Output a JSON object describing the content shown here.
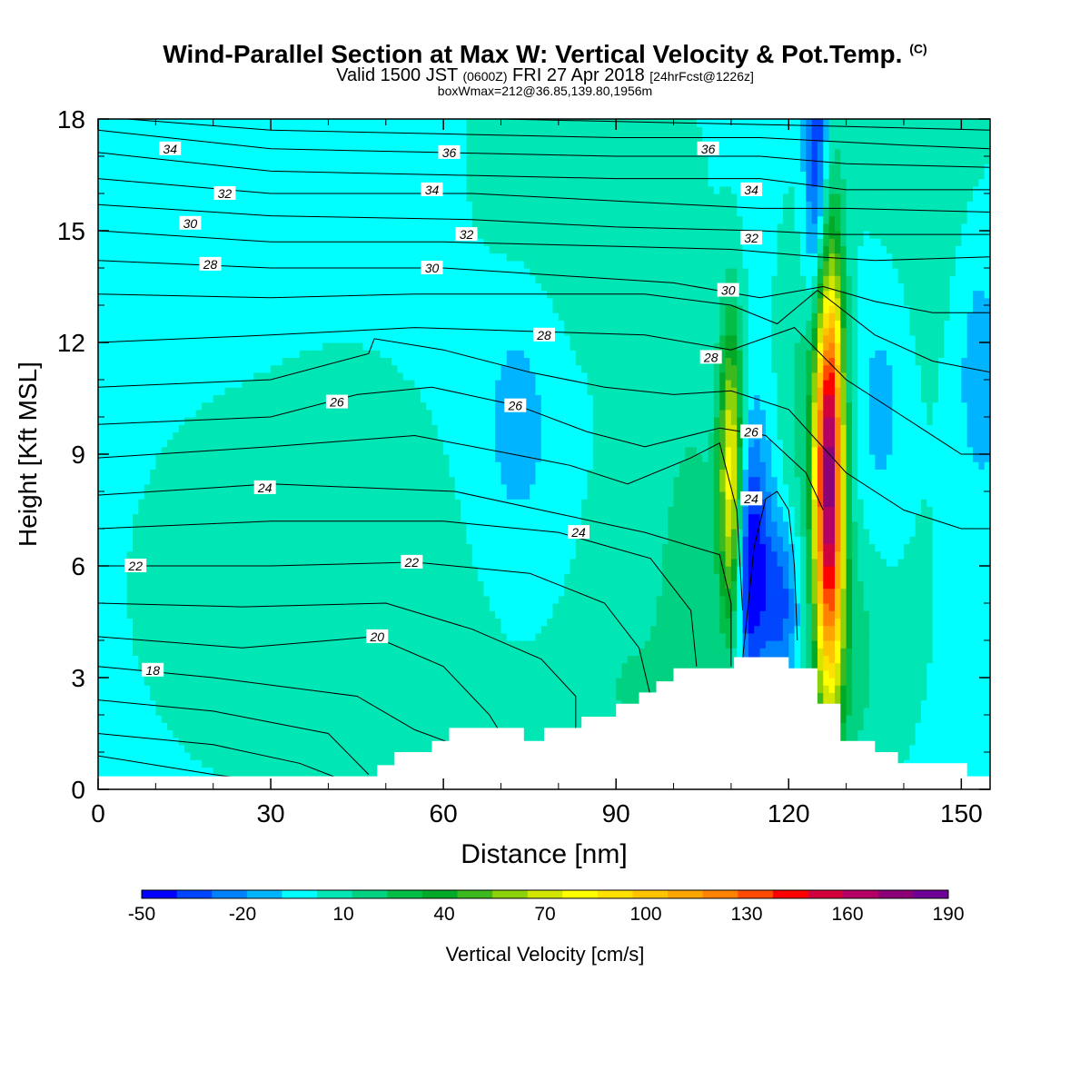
{
  "chart_data": {
    "type": "heatmap",
    "title": "Wind-Parallel Section at Max W: Vertical Velocity & Pot.Temp.",
    "title_mark": "(C)",
    "subtitle_parts": [
      "Valid 1500 JST ",
      "(0600Z)",
      " FRI 27 Apr 2018 ",
      "[24hrFcst@1226z]"
    ],
    "subtitle2": "boxWmax=212@36.85,139.80,1956m",
    "xlabel": "Distance [nm]",
    "ylabel": "Height [Kft MSL]",
    "xlim": [
      0,
      155
    ],
    "ylim": [
      0,
      18
    ],
    "xticks": [
      0,
      30,
      60,
      90,
      120,
      150
    ],
    "yticks": [
      0,
      3,
      6,
      9,
      12,
      15,
      18
    ],
    "colorbar": {
      "label": "Vertical Velocity [cm/s]",
      "range": [
        -50,
        190
      ],
      "tick_labels": [
        "-50",
        "-20",
        "10",
        "40",
        "70",
        "100",
        "130",
        "160",
        "190"
      ],
      "colors": [
        "#0000ff",
        "#0046ff",
        "#0082ff",
        "#00b4ff",
        "#00ffff",
        "#00e6b4",
        "#00d282",
        "#00be46",
        "#00aa28",
        "#3cb91e",
        "#8cd20a",
        "#d2e600",
        "#ffff00",
        "#ffe100",
        "#ffc300",
        "#ffa500",
        "#ff8200",
        "#ff4b00",
        "#ff0000",
        "#d2003c",
        "#b40064",
        "#8c0078",
        "#6e0096"
      ]
    },
    "isentropes": [
      {
        "theta": 16,
        "points": [
          [
            0,
            0.9
          ],
          [
            20,
            0.4
          ],
          [
            40,
            0.0
          ]
        ]
      },
      {
        "theta": 17,
        "points": [
          [
            0,
            1.5
          ],
          [
            20,
            1.2
          ],
          [
            35,
            0.7
          ],
          [
            45,
            0.1
          ]
        ]
      },
      {
        "theta": 18,
        "points": [
          [
            0,
            2.4
          ],
          [
            20,
            2.1
          ],
          [
            40,
            1.5
          ],
          [
            47,
            0.4
          ]
        ]
      },
      {
        "theta": 19,
        "points": [
          [
            0,
            3.3
          ],
          [
            20,
            3.0
          ],
          [
            45,
            2.5
          ],
          [
            55,
            1.6
          ],
          [
            62,
            1.2
          ]
        ]
      },
      {
        "theta": 20,
        "points": [
          [
            0,
            4.1
          ],
          [
            25,
            3.8
          ],
          [
            48,
            4.1
          ],
          [
            60,
            3.3
          ],
          [
            68,
            2.0
          ],
          [
            70,
            1.5
          ]
        ]
      },
      {
        "theta": 21,
        "points": [
          [
            0,
            5.0
          ],
          [
            25,
            4.9
          ],
          [
            50,
            5.0
          ],
          [
            65,
            4.3
          ],
          [
            77,
            3.5
          ],
          [
            83,
            2.5
          ],
          [
            83,
            1.5
          ]
        ]
      },
      {
        "theta": 22,
        "points": [
          [
            0,
            6.0
          ],
          [
            30,
            6.0
          ],
          [
            55,
            6.1
          ],
          [
            75,
            5.8
          ],
          [
            88,
            5.0
          ],
          [
            94,
            3.8
          ],
          [
            96,
            2.5
          ]
        ]
      },
      {
        "theta": 23,
        "points": [
          [
            0,
            7.0
          ],
          [
            30,
            7.2
          ],
          [
            60,
            7.2
          ],
          [
            80,
            6.9
          ],
          [
            96,
            6.2
          ],
          [
            103,
            4.8
          ],
          [
            104,
            3.3
          ]
        ]
      },
      {
        "theta": 24,
        "points": [
          [
            0,
            7.9
          ],
          [
            30,
            8.2
          ],
          [
            62,
            8.0
          ],
          [
            80,
            7.4
          ],
          [
            95,
            6.9
          ],
          [
            108,
            6.3
          ],
          [
            110,
            5.0
          ],
          [
            110,
            3.3
          ]
        ]
      },
      {
        "theta": 24.5,
        "points": [
          [
            112,
            3.5
          ],
          [
            114,
            6.5
          ],
          [
            116,
            7.8
          ],
          [
            118,
            8.0
          ],
          [
            120,
            7.5
          ],
          [
            121,
            6.0
          ],
          [
            121.5,
            4.0
          ]
        ]
      },
      {
        "theta": 25,
        "points": [
          [
            0,
            8.9
          ],
          [
            30,
            9.2
          ],
          [
            55,
            9.5
          ],
          [
            72,
            9.0
          ],
          [
            82,
            8.7
          ],
          [
            92,
            8.2
          ],
          [
            103,
            8.9
          ],
          [
            108,
            9.3
          ],
          [
            111,
            7.5
          ],
          [
            112,
            4.8
          ]
        ]
      },
      {
        "theta": 26,
        "points": [
          [
            0,
            9.8
          ],
          [
            30,
            10.0
          ],
          [
            45,
            10.6
          ],
          [
            58,
            10.8
          ],
          [
            73,
            10.3
          ],
          [
            85,
            9.6
          ],
          [
            95,
            9.2
          ],
          [
            108,
            9.7
          ],
          [
            116,
            9.5
          ],
          [
            123,
            8.5
          ],
          [
            126,
            7.5
          ]
        ]
      },
      {
        "theta": 27,
        "points": [
          [
            0,
            10.8
          ],
          [
            30,
            11.0
          ],
          [
            47,
            11.7
          ],
          [
            48,
            12.1
          ],
          [
            60,
            11.8
          ],
          [
            75,
            11.2
          ],
          [
            88,
            10.8
          ],
          [
            100,
            10.6
          ],
          [
            110,
            10.7
          ],
          [
            120,
            10.2
          ],
          [
            130,
            8.5
          ],
          [
            140,
            7.5
          ],
          [
            150,
            7.0
          ],
          [
            155,
            7.0
          ]
        ]
      },
      {
        "theta": 28,
        "points": [
          [
            0,
            12.0
          ],
          [
            30,
            12.2
          ],
          [
            55,
            12.4
          ],
          [
            75,
            12.3
          ],
          [
            95,
            12.2
          ],
          [
            110,
            11.8
          ],
          [
            121,
            12.4
          ],
          [
            130,
            11.0
          ],
          [
            140,
            10.0
          ],
          [
            150,
            9.0
          ],
          [
            155,
            9.0
          ]
        ]
      },
      {
        "theta": 29,
        "points": [
          [
            0,
            13.3
          ],
          [
            30,
            13.2
          ],
          [
            55,
            13.3
          ],
          [
            75,
            13.3
          ],
          [
            95,
            13.3
          ],
          [
            110,
            13.0
          ],
          [
            118,
            12.5
          ],
          [
            125,
            13.4
          ],
          [
            135,
            12.2
          ],
          [
            145,
            11.5
          ],
          [
            155,
            11.2
          ]
        ]
      },
      {
        "theta": 30,
        "points": [
          [
            0,
            14.2
          ],
          [
            30,
            14.0
          ],
          [
            60,
            14.0
          ],
          [
            80,
            13.8
          ],
          [
            100,
            13.6
          ],
          [
            115,
            13.2
          ],
          [
            126,
            13.5
          ],
          [
            135,
            13.1
          ],
          [
            145,
            12.8
          ],
          [
            155,
            12.8
          ]
        ]
      },
      {
        "theta": 31,
        "points": [
          [
            0,
            15.0
          ],
          [
            30,
            14.7
          ],
          [
            60,
            14.7
          ],
          [
            85,
            14.6
          ],
          [
            110,
            14.5
          ],
          [
            125,
            14.3
          ],
          [
            135,
            14.2
          ],
          [
            155,
            14.3
          ]
        ]
      },
      {
        "theta": 32,
        "points": [
          [
            0,
            15.7
          ],
          [
            30,
            15.4
          ],
          [
            65,
            15.3
          ],
          [
            90,
            15.1
          ],
          [
            115,
            15.0
          ],
          [
            128,
            14.9
          ],
          [
            155,
            14.9
          ]
        ]
      },
      {
        "theta": 33,
        "points": [
          [
            0,
            16.4
          ],
          [
            30,
            16.0
          ],
          [
            65,
            16.0
          ],
          [
            90,
            15.8
          ],
          [
            115,
            15.6
          ],
          [
            130,
            15.6
          ],
          [
            155,
            15.5
          ]
        ]
      },
      {
        "theta": 34,
        "points": [
          [
            0,
            17.1
          ],
          [
            30,
            16.6
          ],
          [
            60,
            16.5
          ],
          [
            90,
            16.4
          ],
          [
            115,
            16.4
          ],
          [
            130,
            16.1
          ],
          [
            155,
            16.1
          ]
        ]
      },
      {
        "theta": 35,
        "points": [
          [
            0,
            17.7
          ],
          [
            30,
            17.2
          ],
          [
            60,
            17.1
          ],
          [
            90,
            17.0
          ],
          [
            115,
            17.0
          ],
          [
            130,
            16.8
          ],
          [
            155,
            16.7
          ]
        ]
      },
      {
        "theta": 36,
        "points": [
          [
            5,
            18.0
          ],
          [
            30,
            17.7
          ],
          [
            60,
            17.6
          ],
          [
            90,
            17.5
          ],
          [
            115,
            17.5
          ],
          [
            140,
            17.3
          ],
          [
            155,
            17.2
          ]
        ]
      },
      {
        "theta": 37,
        "points": [
          [
            40,
            18.0
          ],
          [
            70,
            18.0
          ],
          [
            100,
            17.9
          ],
          [
            130,
            17.8
          ],
          [
            155,
            17.7
          ]
        ]
      }
    ],
    "isentrope_labels": [
      {
        "text": "18",
        "x": 9.5,
        "y": 3.2
      },
      {
        "text": "20",
        "x": 48.5,
        "y": 4.1
      },
      {
        "text": "22",
        "x": 6.5,
        "y": 6.0
      },
      {
        "text": "22",
        "x": 54.5,
        "y": 6.1
      },
      {
        "text": "24",
        "x": 29,
        "y": 8.1
      },
      {
        "text": "24",
        "x": 83.5,
        "y": 6.9
      },
      {
        "text": "24",
        "x": 113.5,
        "y": 7.8
      },
      {
        "text": "24",
        "x": 113.5,
        "y": 7.8
      },
      {
        "text": "26",
        "x": 41.5,
        "y": 10.4
      },
      {
        "text": "26",
        "x": 72.5,
        "y": 10.3
      },
      {
        "text": "26",
        "x": 113.5,
        "y": 9.6
      },
      {
        "text": "28",
        "x": 19.5,
        "y": 14.1
      },
      {
        "text": "28",
        "x": 77.5,
        "y": 12.2
      },
      {
        "text": "28",
        "x": 106.5,
        "y": 11.6
      },
      {
        "text": "30",
        "x": 16,
        "y": 15.2
      },
      {
        "text": "30",
        "x": 58,
        "y": 14.0
      },
      {
        "text": "30",
        "x": 109.5,
        "y": 13.4
      },
      {
        "text": "32",
        "x": 22,
        "y": 16.0
      },
      {
        "text": "32",
        "x": 64,
        "y": 14.9
      },
      {
        "text": "32",
        "x": 113.5,
        "y": 14.8
      },
      {
        "text": "34",
        "x": 12.5,
        "y": 17.2
      },
      {
        "text": "34",
        "x": 58,
        "y": 16.1
      },
      {
        "text": "34",
        "x": 113.5,
        "y": 16.1
      },
      {
        "text": "36",
        "x": 61,
        "y": 17.1
      },
      {
        "text": "36",
        "x": 106,
        "y": 17.2
      }
    ],
    "terrain_height_kft": [
      [
        0,
        0.35
      ],
      [
        48.5,
        0.35
      ],
      [
        48.5,
        0.65
      ],
      [
        51.5,
        0.65
      ],
      [
        51.5,
        1.0
      ],
      [
        58,
        1.0
      ],
      [
        58,
        1.3
      ],
      [
        61,
        1.3
      ],
      [
        61,
        1.65
      ],
      [
        74,
        1.65
      ],
      [
        74,
        1.3
      ],
      [
        77.5,
        1.3
      ],
      [
        77.5,
        1.65
      ],
      [
        84,
        1.65
      ],
      [
        84,
        1.95
      ],
      [
        90,
        1.95
      ],
      [
        90,
        2.3
      ],
      [
        94,
        2.3
      ],
      [
        94,
        2.6
      ],
      [
        97,
        2.6
      ],
      [
        97,
        2.9
      ],
      [
        100,
        2.9
      ],
      [
        100,
        3.25
      ],
      [
        110.5,
        3.25
      ],
      [
        110.5,
        3.55
      ],
      [
        120,
        3.55
      ],
      [
        120,
        3.25
      ],
      [
        125,
        3.25
      ],
      [
        125,
        2.3
      ],
      [
        129,
        2.3
      ],
      [
        129,
        1.3
      ],
      [
        135,
        1.3
      ],
      [
        135,
        1.0
      ],
      [
        139,
        1.0
      ],
      [
        139,
        0.7
      ],
      [
        151,
        0.7
      ],
      [
        151,
        0.35
      ],
      [
        155,
        0.35
      ]
    ]
  }
}
